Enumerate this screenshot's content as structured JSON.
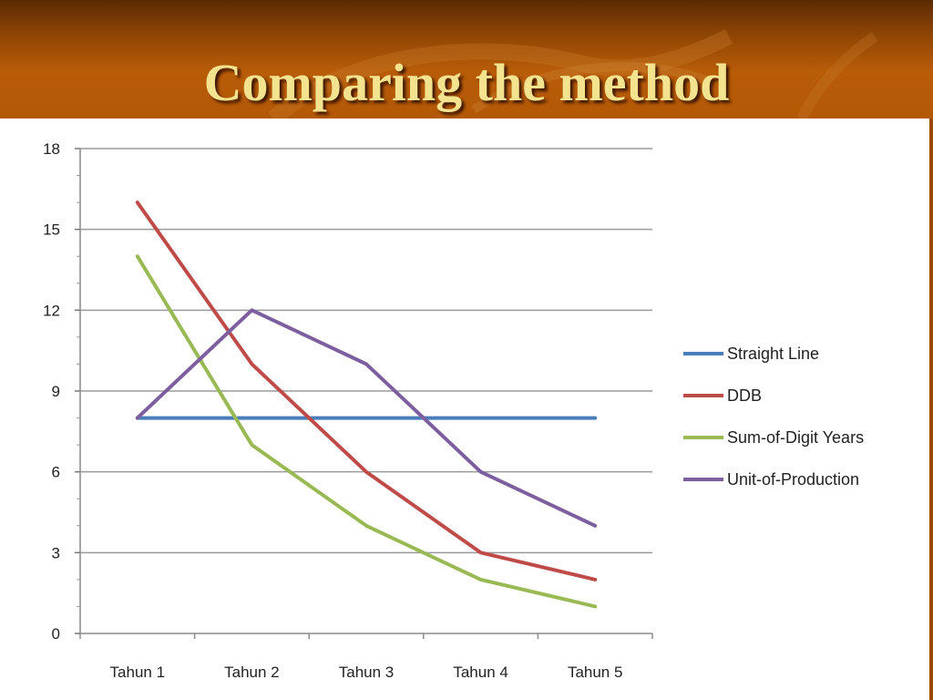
{
  "slide": {
    "title": "Comparing the method"
  },
  "chart_data": {
    "type": "line",
    "title": "",
    "xlabel": "",
    "ylabel": "",
    "categories": [
      "Tahun 1",
      "Tahun 2",
      "Tahun 3",
      "Tahun 4",
      "Tahun 5"
    ],
    "ylim": [
      0,
      18
    ],
    "yticks": [
      0,
      3,
      6,
      9,
      12,
      15,
      18
    ],
    "grid": true,
    "legend_position": "right",
    "series": [
      {
        "name": "Straight Line",
        "color": "#4a7ebb",
        "values": [
          8,
          8,
          8,
          8,
          8
        ]
      },
      {
        "name": "DDB",
        "color": "#be4b48",
        "values": [
          16,
          10,
          6,
          3,
          2
        ]
      },
      {
        "name": "Sum-of-Digit Years",
        "color": "#98b954",
        "values": [
          14,
          7,
          4,
          2,
          1
        ]
      },
      {
        "name": "Unit-of-Production",
        "color": "#7d5fa0",
        "values": [
          8,
          12,
          10,
          6,
          4
        ]
      }
    ]
  }
}
